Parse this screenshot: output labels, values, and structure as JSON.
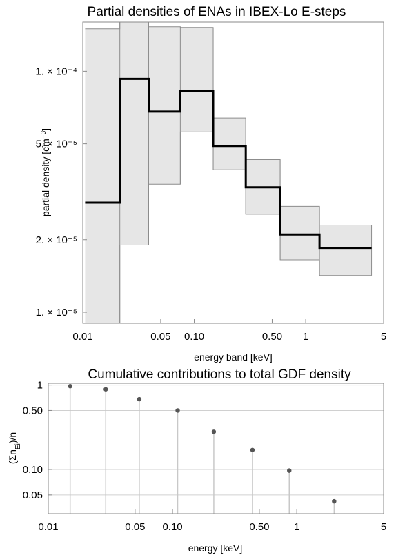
{
  "chart_data": [
    {
      "type": "line",
      "title": "Partial densities of ENAs in IBEX-Lo E-steps",
      "xlabel": "energy band [keV]",
      "ylabel": "partial density [cm^-3]",
      "x_scale": "log",
      "y_scale": "log",
      "xlim": [
        0.01,
        5
      ],
      "ylim": [
        9e-06,
        0.00016
      ],
      "grid": false,
      "x_ticks": [
        {
          "value": 0.01,
          "label": "0.01"
        },
        {
          "value": 0.05,
          "label": "0.05"
        },
        {
          "value": 0.1,
          "label": "0.10"
        },
        {
          "value": 0.5,
          "label": "0.50"
        },
        {
          "value": 1,
          "label": "1"
        },
        {
          "value": 5,
          "label": "5"
        }
      ],
      "y_ticks": [
        {
          "value": 1e-05,
          "label": "1. × 10⁻⁵"
        },
        {
          "value": 2e-05,
          "label": "2. × 10⁻⁵"
        },
        {
          "value": 5e-05,
          "label": "5. × 10⁻⁵"
        },
        {
          "value": 0.0001,
          "label": "1. × 10⁻⁴"
        }
      ],
      "bands": [
        {
          "x_low": 0.0105,
          "x_high": 0.0215,
          "value": 2.85e-05,
          "lower": 1e-06,
          "upper": 0.00015
        },
        {
          "x_low": 0.0215,
          "x_high": 0.039,
          "value": 9.3e-05,
          "lower": 1.9e-05,
          "upper": 0.0002
        },
        {
          "x_low": 0.039,
          "x_high": 0.075,
          "value": 6.8e-05,
          "lower": 3.4e-05,
          "upper": 0.000153
        },
        {
          "x_low": 0.075,
          "x_high": 0.148,
          "value": 8.3e-05,
          "lower": 5.6e-05,
          "upper": 0.000152
        },
        {
          "x_low": 0.148,
          "x_high": 0.29,
          "value": 4.9e-05,
          "lower": 3.9e-05,
          "upper": 6.4e-05
        },
        {
          "x_low": 0.29,
          "x_high": 0.59,
          "value": 3.3e-05,
          "lower": 2.55e-05,
          "upper": 4.3e-05
        },
        {
          "x_low": 0.59,
          "x_high": 1.33,
          "value": 2.1e-05,
          "lower": 1.65e-05,
          "upper": 2.75e-05
        },
        {
          "x_low": 1.33,
          "x_high": 3.9,
          "value": 1.85e-05,
          "lower": 1.42e-05,
          "upper": 2.3e-05
        }
      ],
      "colors": {
        "line": "#000000",
        "band_fill": "#e6e6e6",
        "band_edge": "#8c8c8c"
      }
    },
    {
      "type": "scatter",
      "style": "stem",
      "title": "Cumulative contributions to total GDF density",
      "xlabel": "energy [keV]",
      "ylabel": "(Σn_Ei)/n",
      "x_scale": "log",
      "y_scale": "log",
      "xlim": [
        0.01,
        5
      ],
      "ylim": [
        0.03,
        1.05
      ],
      "grid": true,
      "x_ticks": [
        {
          "value": 0.01,
          "label": "0.01"
        },
        {
          "value": 0.05,
          "label": "0.05"
        },
        {
          "value": 0.1,
          "label": "0.10"
        },
        {
          "value": 0.5,
          "label": "0.50"
        },
        {
          "value": 1,
          "label": "1"
        },
        {
          "value": 5,
          "label": "5"
        }
      ],
      "y_ticks": [
        {
          "value": 0.05,
          "label": "0.05"
        },
        {
          "value": 0.1,
          "label": "0.10"
        },
        {
          "value": 0.5,
          "label": "0.50"
        },
        {
          "value": 1,
          "label": "1"
        }
      ],
      "points": [
        {
          "x": 0.015,
          "y": 0.97
        },
        {
          "x": 0.029,
          "y": 0.89
        },
        {
          "x": 0.054,
          "y": 0.68
        },
        {
          "x": 0.11,
          "y": 0.5
        },
        {
          "x": 0.215,
          "y": 0.28
        },
        {
          "x": 0.44,
          "y": 0.17
        },
        {
          "x": 0.87,
          "y": 0.097
        },
        {
          "x": 2.0,
          "y": 0.042
        }
      ],
      "colors": {
        "point": "#555555",
        "stem": "#c8c8c8",
        "grid": "#d0d0d0"
      }
    }
  ]
}
